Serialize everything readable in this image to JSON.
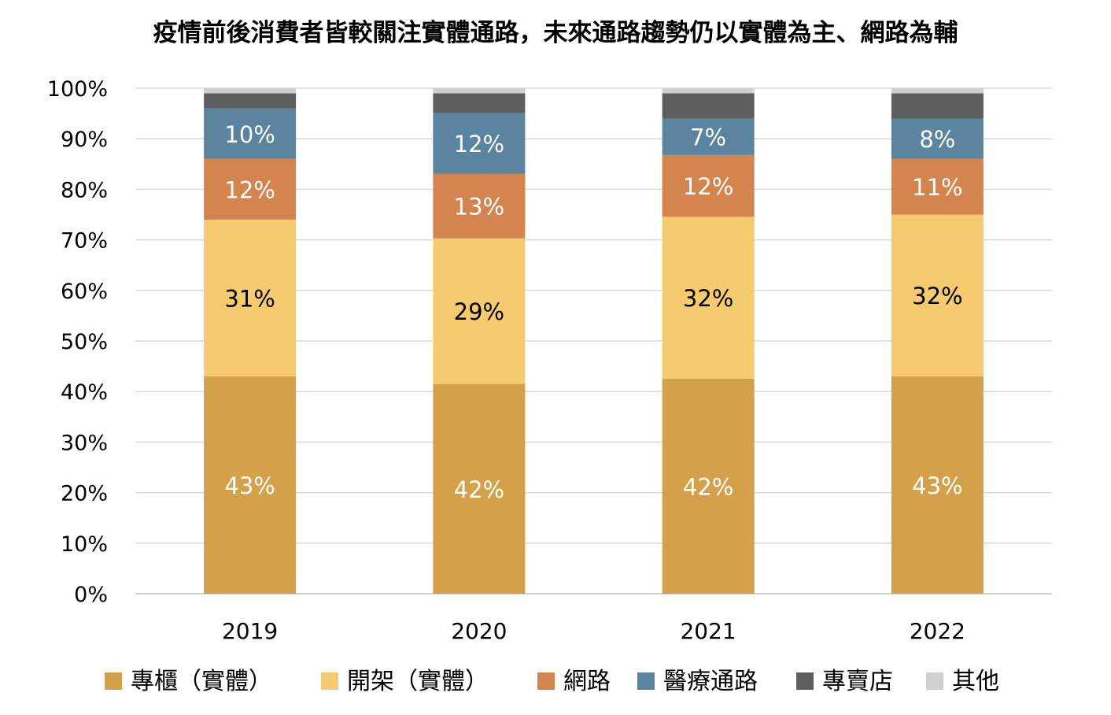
{
  "chart_data": {
    "type": "bar",
    "stacked": true,
    "title": "疫情前後消費者皆較關注實體通路，未來通路趨勢仍以實體為主、網路為輔",
    "categories": [
      "2019",
      "2020",
      "2021",
      "2022"
    ],
    "ylim": [
      0,
      100
    ],
    "yticks": [
      "0%",
      "10%",
      "20%",
      "30%",
      "40%",
      "50%",
      "60%",
      "70%",
      "80%",
      "90%",
      "100%"
    ],
    "grid": true,
    "legend_position": "bottom",
    "series": [
      {
        "name": "專櫃（實體）",
        "color": "#D4A04A",
        "label_color": "#FFFFFF",
        "values": [
          43,
          41.5,
          42.5,
          43
        ],
        "labels": [
          "43%",
          "42%",
          "42%",
          "43%"
        ]
      },
      {
        "name": "開架（實體）",
        "color": "#F6CA6E",
        "label_color": "#000000",
        "values": [
          31,
          28.8,
          32,
          32
        ],
        "labels": [
          "31%",
          "29%",
          "32%",
          "32%"
        ]
      },
      {
        "name": "網路",
        "color": "#D4844E",
        "label_color": "#FFFFFF",
        "values": [
          12,
          12.8,
          12.2,
          11
        ],
        "labels": [
          "12%",
          "13%",
          "12%",
          "11%"
        ]
      },
      {
        "name": "醫療通路",
        "color": "#5A84A0",
        "label_color": "#FFFFFF",
        "values": [
          10,
          12,
          7.2,
          8
        ],
        "labels": [
          "10%",
          "12%",
          "7%",
          "8%"
        ]
      },
      {
        "name": "專賣店",
        "color": "#5E5E5E",
        "label_color": null,
        "values": [
          3,
          3.9,
          5,
          5
        ],
        "labels": null
      },
      {
        "name": "其他",
        "color": "#D0D0D0",
        "label_color": null,
        "values": [
          1,
          1,
          1,
          1
        ],
        "labels": null
      }
    ]
  }
}
